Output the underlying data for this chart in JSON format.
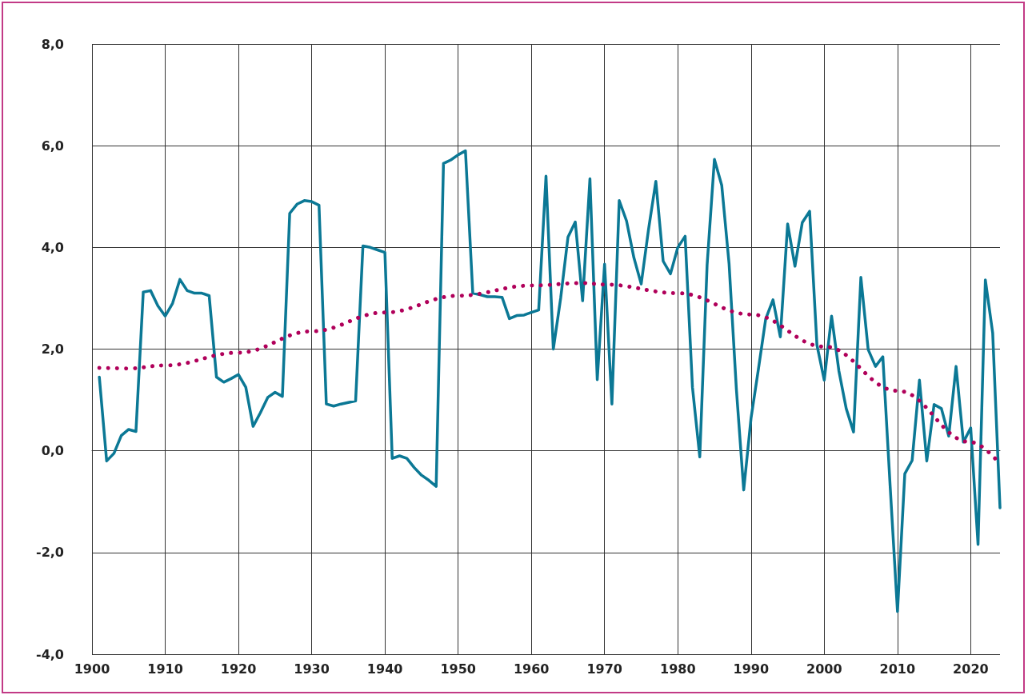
{
  "chart_data": {
    "type": "line",
    "xlim": [
      1900,
      2024
    ],
    "xticks": [
      1900,
      1910,
      1920,
      1930,
      1940,
      1950,
      1960,
      1970,
      1980,
      1990,
      2000,
      2010,
      2020
    ],
    "ylim": [
      -4,
      8
    ],
    "yticks": [
      {
        "value": -4,
        "label": "-4,0"
      },
      {
        "value": -2,
        "label": "-2,0"
      },
      {
        "value": 0,
        "label": "0,0"
      },
      {
        "value": 2,
        "label": "2,0"
      },
      {
        "value": 4,
        "label": "4,0"
      },
      {
        "value": 6,
        "label": "6,0"
      },
      {
        "value": 8,
        "label": "8,0"
      }
    ],
    "grid": true,
    "marker": "none",
    "series": [
      {
        "color": "#0b7895",
        "line_style": "solid",
        "x": [
          1901,
          1902,
          1903,
          1904,
          1905,
          1906,
          1907,
          1908,
          1909,
          1910,
          1911,
          1912,
          1913,
          1914,
          1915,
          1916,
          1917,
          1918,
          1919,
          1920,
          1921,
          1922,
          1923,
          1924,
          1925,
          1926,
          1927,
          1928,
          1929,
          1930,
          1931,
          1932,
          1933,
          1934,
          1935,
          1936,
          1937,
          1938,
          1939,
          1940,
          1941,
          1942,
          1943,
          1944,
          1945,
          1946,
          1947,
          1948,
          1949,
          1950,
          1951,
          1952,
          1953,
          1954,
          1955,
          1956,
          1957,
          1958,
          1959,
          1960,
          1961,
          1962,
          1963,
          1964,
          1965,
          1966,
          1967,
          1968,
          1969,
          1970,
          1971,
          1972,
          1973,
          1974,
          1975,
          1976,
          1977,
          1978,
          1979,
          1980,
          1981,
          1982,
          1983,
          1984,
          1985,
          1986,
          1987,
          1988,
          1989,
          1990,
          1991,
          1992,
          1993,
          1994,
          1995,
          1996,
          1997,
          1998,
          1999,
          2000,
          2001,
          2002,
          2003,
          2004,
          2005,
          2006,
          2007,
          2008,
          2009,
          2010,
          2011,
          2012,
          2013,
          2014,
          2015,
          2016,
          2017,
          2018,
          2019,
          2020,
          2021,
          2022,
          2023,
          2024
        ],
        "values": [
          1.45,
          -0.2,
          -0.05,
          0.3,
          0.42,
          0.38,
          3.12,
          3.15,
          2.85,
          2.65,
          2.9,
          3.37,
          3.15,
          3.1,
          3.1,
          3.05,
          1.45,
          1.35,
          1.42,
          1.5,
          1.25,
          0.48,
          0.75,
          1.05,
          1.15,
          1.07,
          4.67,
          4.85,
          4.92,
          4.9,
          4.83,
          0.92,
          0.88,
          0.92,
          0.95,
          0.98,
          4.03,
          4.0,
          3.95,
          3.9,
          -0.15,
          -0.1,
          -0.15,
          -0.33,
          -0.48,
          -0.58,
          -0.7,
          5.65,
          5.72,
          5.82,
          5.9,
          3.1,
          3.07,
          3.03,
          3.03,
          3.02,
          2.6,
          2.66,
          2.67,
          2.72,
          2.77,
          5.4,
          2.0,
          3.0,
          4.2,
          4.5,
          2.95,
          5.35,
          1.4,
          3.67,
          0.92,
          4.92,
          4.52,
          3.8,
          3.28,
          4.35,
          5.3,
          3.73,
          3.48,
          4.0,
          4.22,
          1.25,
          -0.12,
          3.65,
          5.73,
          5.22,
          3.68,
          1.21,
          -0.77,
          0.64,
          1.6,
          2.59,
          2.97,
          2.24,
          4.46,
          3.63,
          4.49,
          4.71,
          2.08,
          1.39,
          2.65,
          1.57,
          0.83,
          0.37,
          3.41,
          1.99,
          1.66,
          1.85,
          -0.7,
          -3.16,
          -0.45,
          -0.19,
          1.39,
          -0.2,
          0.91,
          0.83,
          0.29,
          1.66,
          0.17,
          0.45,
          -1.84,
          3.36,
          2.32,
          -1.12
        ]
      },
      {
        "type": "line",
        "color": "#b0005a",
        "line_style": "dotted",
        "x": [
          1901,
          1905,
          1910,
          1920,
          1930,
          1940,
          1950,
          1960,
          1967,
          1970,
          1980,
          1990,
          2000,
          2010,
          2020,
          2024
        ],
        "values": [
          1.63,
          1.62,
          1.68,
          1.93,
          2.35,
          2.72,
          3.05,
          3.25,
          3.3,
          3.27,
          3.1,
          2.68,
          2.05,
          1.18,
          0.17,
          -0.26
        ]
      }
    ]
  }
}
